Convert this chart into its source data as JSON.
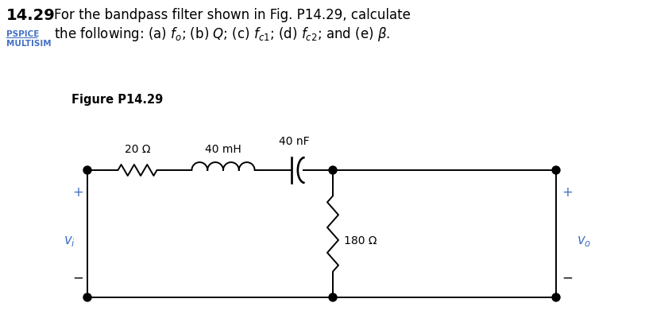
{
  "background_color": "#ffffff",
  "title_number": "14.29",
  "title_text": "For the bandpass filter shown in Fig. P14.29, calculate",
  "title_line2": "the following: (a) $f_o$; (b) $Q$; (c) $f_{c1}$; (d) $f_{c2}$; and (e) $\\beta$.",
  "pspice_label": "PSPICE",
  "multisim_label": "MULTISIM",
  "figure_label": "Figure P14.29",
  "resistor1_label": "20 Ω",
  "inductor_label": "40 mH",
  "capacitor_label": "40 nF",
  "resistor2_label": "180 Ω",
  "vi_label": "$v_i$",
  "vo_label": "$v_o$",
  "plus_color": "#4472C4",
  "label_color": "#4472C4",
  "wire_color": "#000000",
  "text_color": "#000000"
}
